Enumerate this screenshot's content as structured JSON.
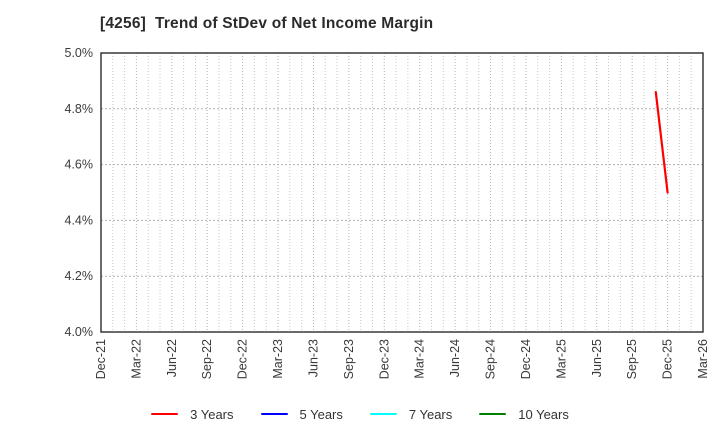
{
  "chart_data": {
    "type": "line",
    "title": "[4256]  Trend of StDev of Net Income Margin",
    "xlabel": "",
    "ylabel": "",
    "ylim": [
      4.0,
      5.0
    ],
    "grid": true,
    "legend_position": "bottom-center",
    "y_ticks": [
      {
        "label": "5.0%",
        "value": 5.0
      },
      {
        "label": "4.8%",
        "value": 4.8
      },
      {
        "label": "4.6%",
        "value": 4.6
      },
      {
        "label": "4.4%",
        "value": 4.4
      },
      {
        "label": "4.2%",
        "value": 4.2
      },
      {
        "label": "4.0%",
        "value": 4.0
      }
    ],
    "x_axis": {
      "months_total": 51,
      "tick_every_months": 3,
      "minor_gridline_unit": "month",
      "tick_labels": [
        "Dec-21",
        "Mar-22",
        "Jun-22",
        "Sep-22",
        "Dec-22",
        "Mar-23",
        "Jun-23",
        "Sep-23",
        "Dec-23",
        "Mar-24",
        "Jun-24",
        "Sep-24",
        "Dec-24",
        "Mar-25",
        "Jun-25",
        "Sep-25",
        "Dec-25",
        "Mar-26"
      ]
    },
    "series": [
      {
        "name": "3 Years",
        "color": "#ff0000",
        "points": [
          {
            "x_label": "Nov-25",
            "x_month": 47,
            "y": 4.86
          },
          {
            "x_label": "Dec-25",
            "x_month": 48,
            "y": 4.5
          }
        ]
      },
      {
        "name": "5 Years",
        "color": "#0000ff",
        "points": []
      },
      {
        "name": "7 Years",
        "color": "#00ffff",
        "points": []
      },
      {
        "name": "10 Years",
        "color": "#008000",
        "points": []
      }
    ],
    "style": {
      "background": "#ffffff",
      "axis_color": "#2b2b2b",
      "grid_major_color": "#b0b0b0",
      "grid_minor_color": "#c9c9c9",
      "grid_quarter_color": "#b3b3b3",
      "title_color": "#2b2b2b",
      "tick_text_color": "#3a3a3a"
    }
  }
}
